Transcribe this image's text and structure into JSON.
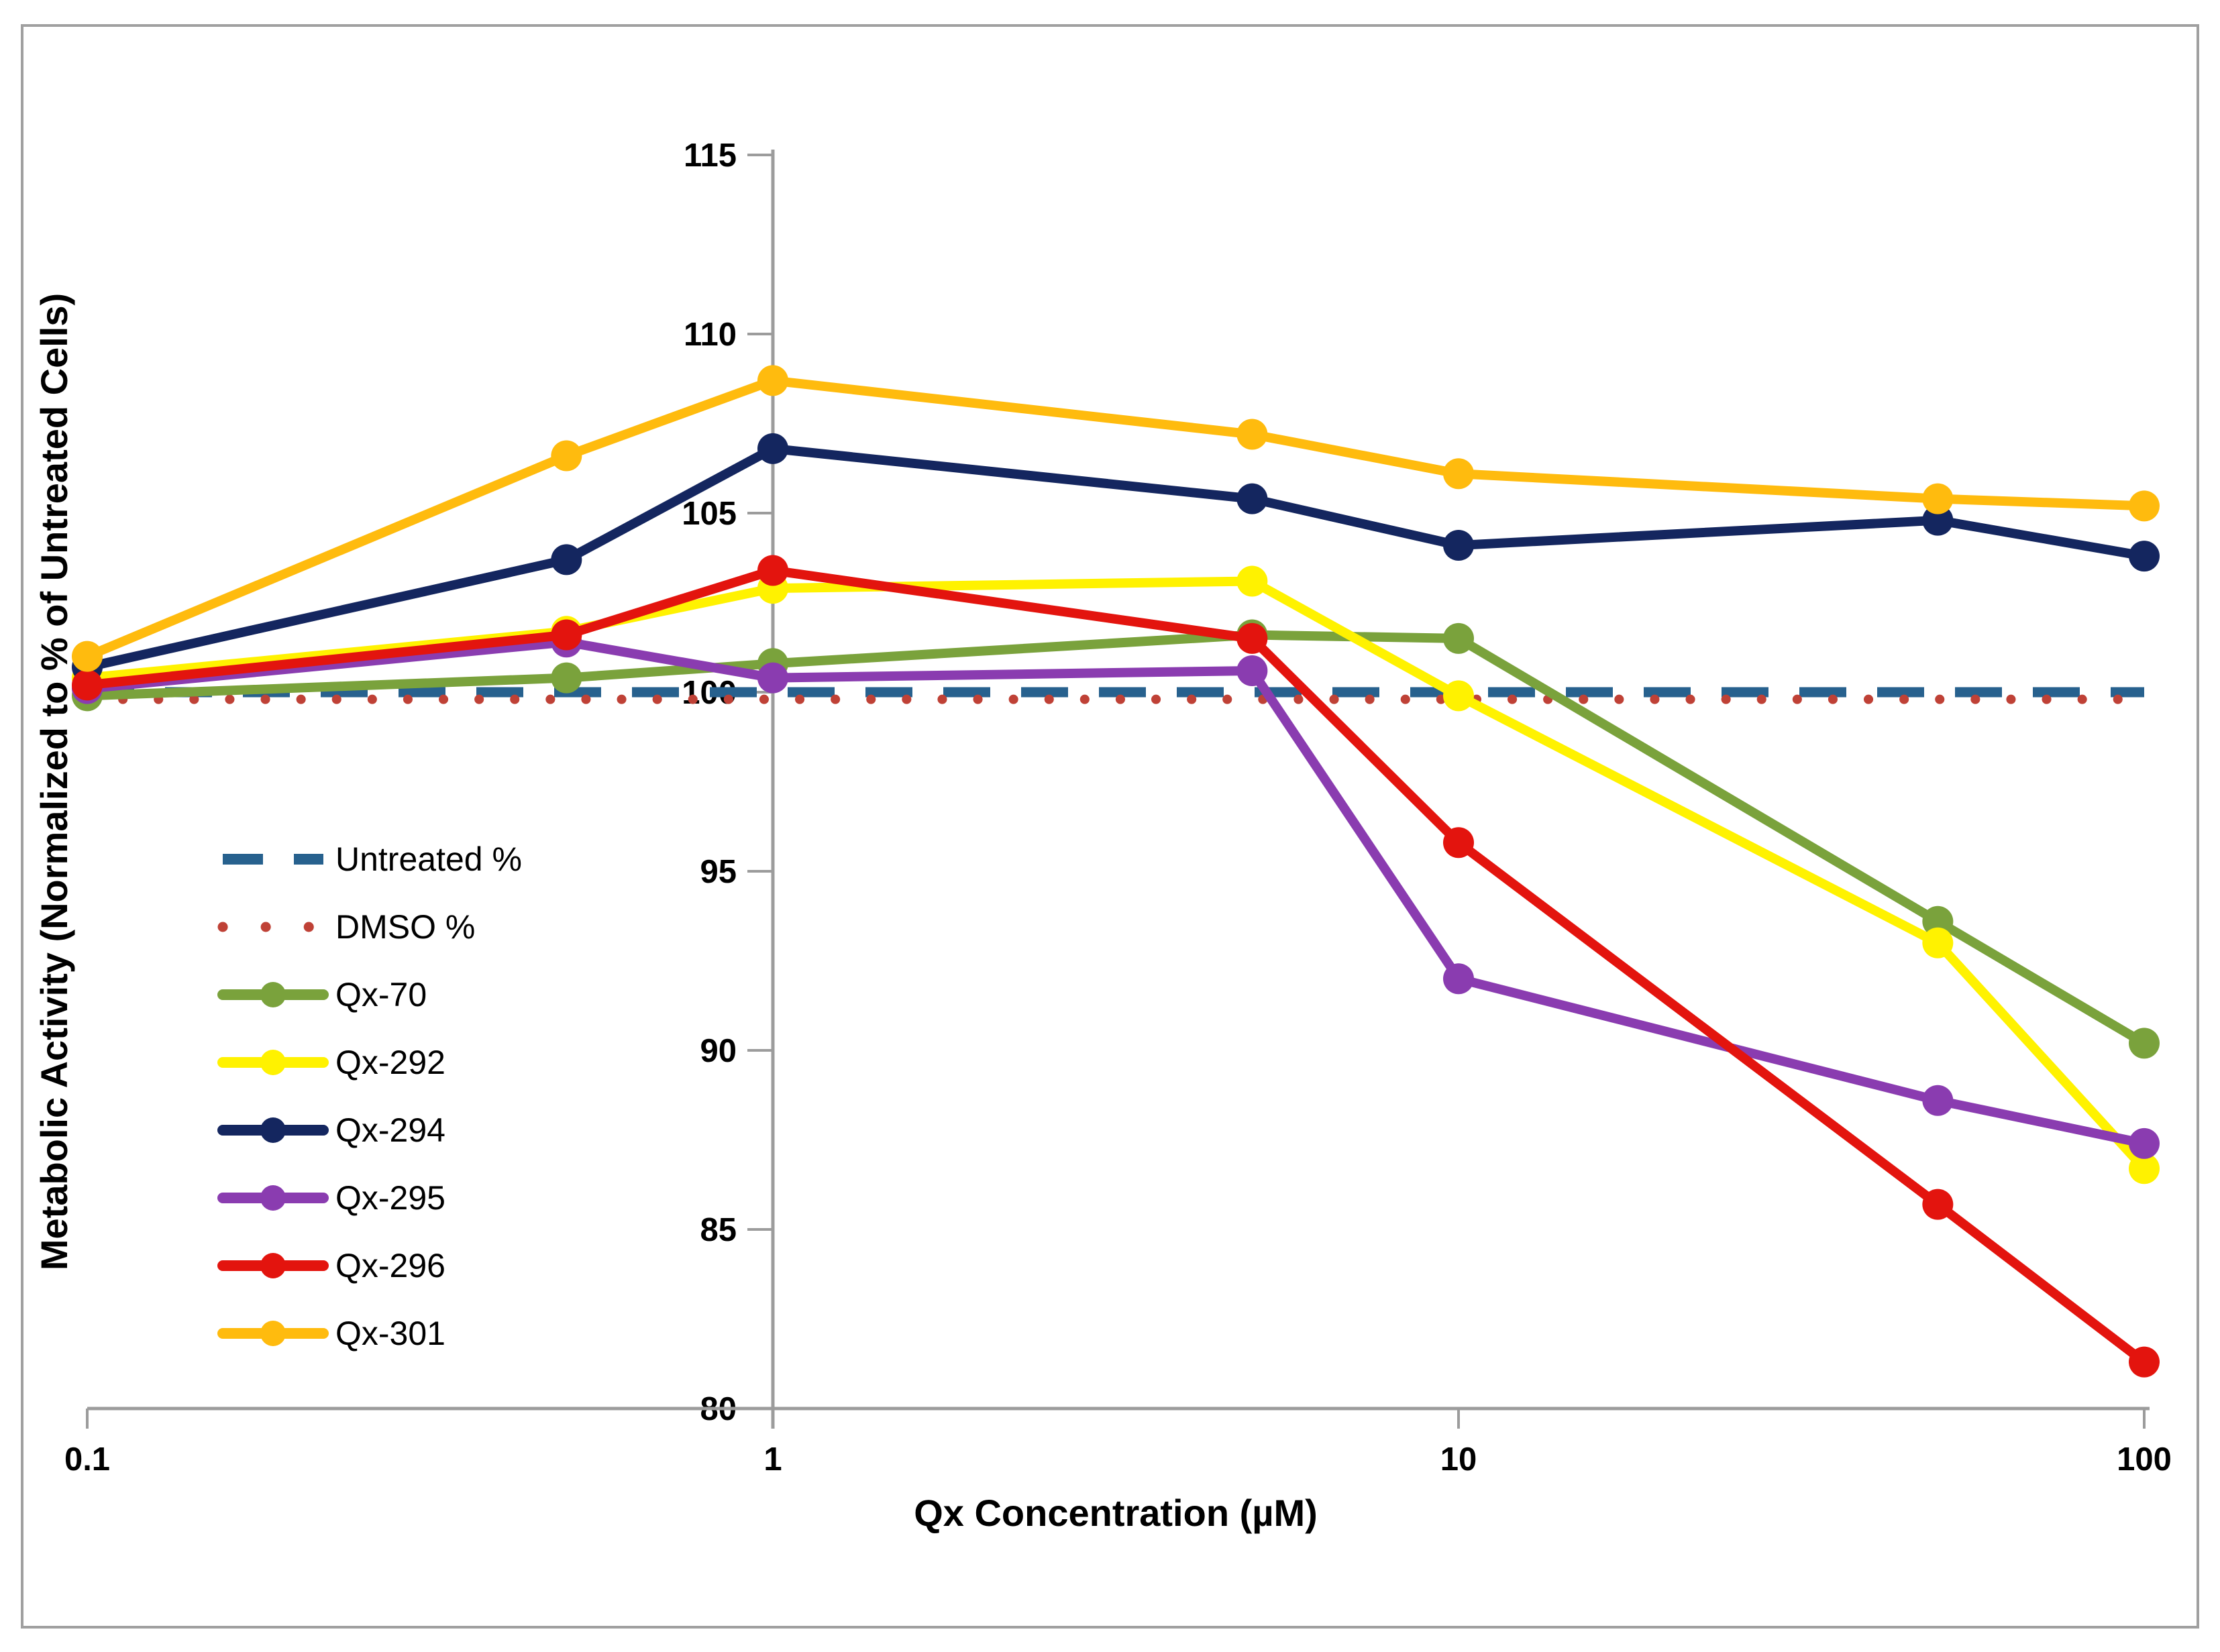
{
  "figure": {
    "background": "#ffffff",
    "border_color": "#a0a0a0",
    "axis_color": "#9c9c9c"
  },
  "chart_data": {
    "type": "line",
    "title": "",
    "xlabel": "Qx Concentration (µM)",
    "ylabel": "Metabolic Activity (Normalized to % of Untreated Cells)",
    "x_scale": "log",
    "xlim": [
      0.1,
      100
    ],
    "ylim": [
      80,
      115
    ],
    "x_ticks": [
      0.1,
      1,
      10,
      100
    ],
    "x_tick_labels": [
      "0.1",
      "1",
      "10",
      "100"
    ],
    "y_ticks": [
      80,
      85,
      90,
      95,
      100,
      105,
      110,
      115
    ],
    "grid": false,
    "y_axis_cross_x": 1,
    "legend_position": "inside-left",
    "x": [
      0.1,
      0.5,
      1,
      5,
      10,
      50,
      100
    ],
    "reference_lines": [
      {
        "name": "Untreated %",
        "value": 100.0,
        "color": "#27618e",
        "style": "dashed"
      },
      {
        "name": "DMSO %",
        "value": 99.8,
        "color": "#bf4136",
        "style": "dotted"
      }
    ],
    "series": [
      {
        "name": "Qx-70",
        "color": "#7aa23c",
        "values": [
          99.9,
          100.4,
          100.8,
          101.6,
          101.5,
          93.6,
          90.2
        ]
      },
      {
        "name": "Qx-292",
        "color": "#fff200",
        "values": [
          100.4,
          101.7,
          102.9,
          103.1,
          99.9,
          93.0,
          86.7
        ]
      },
      {
        "name": "Qx-294",
        "color": "#14265f",
        "values": [
          100.7,
          103.7,
          106.8,
          105.4,
          104.1,
          104.8,
          103.8
        ]
      },
      {
        "name": "Qx-295",
        "color": "#8a3cb0",
        "values": [
          100.1,
          101.4,
          100.4,
          100.6,
          92.0,
          88.6,
          87.4
        ]
      },
      {
        "name": "Qx-296",
        "color": "#e3140e",
        "values": [
          100.2,
          101.6,
          103.4,
          101.5,
          95.8,
          85.7,
          81.3
        ]
      },
      {
        "name": "Qx-301",
        "color": "#ffbb0e",
        "values": [
          101.0,
          106.6,
          108.7,
          107.2,
          106.1,
          105.4,
          105.2
        ]
      }
    ],
    "legend": [
      "Untreated %",
      "DMSO %",
      "Qx-70",
      "Qx-292",
      "Qx-294",
      "Qx-295",
      "Qx-296",
      "Qx-301"
    ]
  }
}
